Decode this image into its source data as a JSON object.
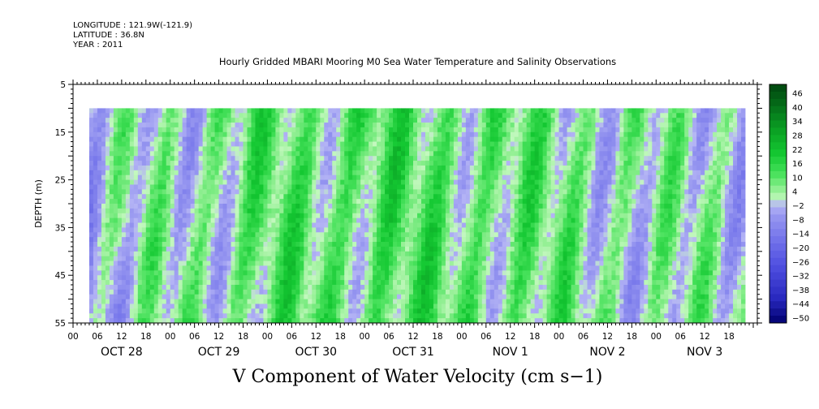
{
  "header": {
    "longitude": "LONGITUDE : 121.9W(-121.9)",
    "latitude": "LATITUDE : 36.8N",
    "year": "YEAR : 2011",
    "title": "Hourly Gridded MBARI Mooring M0 Sea Water Temperature and Salinity Observations"
  },
  "chart_data": {
    "type": "heatmap",
    "title": "V Component of Water Velocity (cm s−1)",
    "ylabel": "DEPTH (m)",
    "xlabel": "",
    "y_axis": {
      "range": [
        5,
        55
      ],
      "inverted": true,
      "ticks": [
        5,
        15,
        25,
        35,
        45,
        55
      ],
      "data_depth_range": [
        10,
        55
      ]
    },
    "x_axis": {
      "hour_labels": [
        "00",
        "06",
        "12",
        "18",
        "00",
        "06",
        "12",
        "18",
        "00",
        "06",
        "12",
        "18",
        "00",
        "06",
        "12",
        "18",
        "00",
        "06",
        "12",
        "18",
        "00",
        "06",
        "12",
        "18",
        "00",
        "06",
        "12",
        "18"
      ],
      "day_labels": [
        "OCT 28",
        "OCT 29",
        "OCT 30",
        "OCT 31",
        "NOV  1",
        "NOV  2",
        "NOV  3"
      ],
      "data_start_hour": 4,
      "data_end_hour": 166
    },
    "colorbar": {
      "labels": [
        "46",
        "40",
        "34",
        "28",
        "22",
        "16",
        "10",
        "4",
        "−2",
        "−8",
        "−14",
        "−20",
        "−26",
        "−32",
        "−38",
        "−44",
        "−50"
      ],
      "range": [
        -50,
        49
      ]
    },
    "v_velocity_day_means": [
      -3,
      3,
      8,
      10,
      9,
      6,
      2
    ],
    "grid": false
  }
}
